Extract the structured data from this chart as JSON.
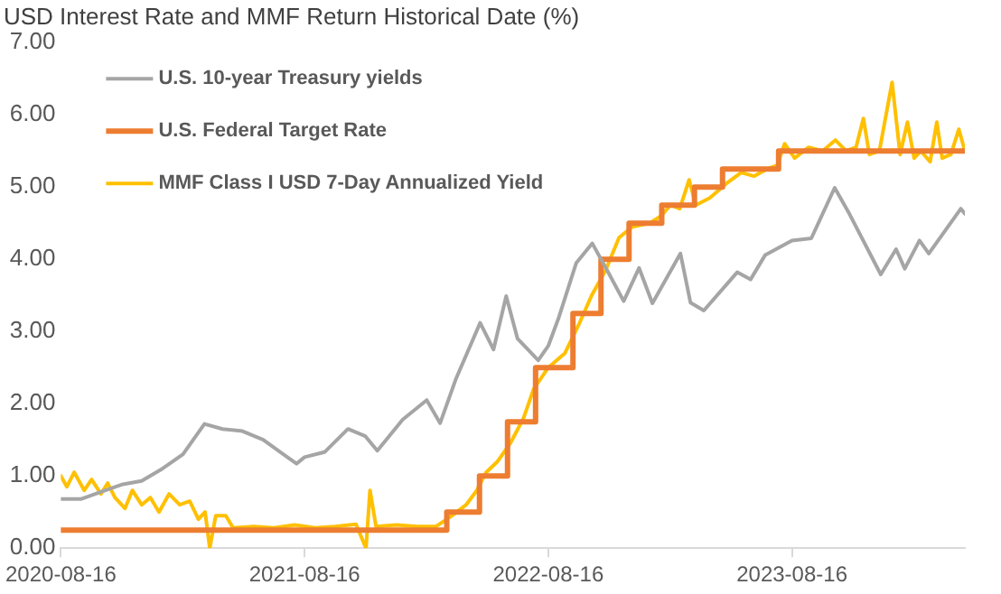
{
  "chart_data": {
    "type": "line",
    "title": "USD Interest Rate and MMF Return Historical Date (%)",
    "xlim": [
      "2020-08-16",
      "2024-05-01"
    ],
    "xticks": [
      "2020-08-16",
      "2021-08-16",
      "2022-08-16",
      "2023-08-16"
    ],
    "ylim": [
      0,
      7
    ],
    "yticks": [
      {
        "value": 0,
        "label": "0.00"
      },
      {
        "value": 1,
        "label": "1.00"
      },
      {
        "value": 2,
        "label": "2.00"
      },
      {
        "value": 3,
        "label": "3.00"
      },
      {
        "value": 4,
        "label": "4.00"
      },
      {
        "value": 5,
        "label": "5.00"
      },
      {
        "value": 6,
        "label": "6.00"
      },
      {
        "value": 7,
        "label": "7.00"
      }
    ],
    "grid": false,
    "legend": "top left",
    "marker": "none",
    "line_style": "solid",
    "series": [
      {
        "name": "U.S. 10-year Treasury yields",
        "color": "#a5a5a5",
        "x": [
          "2020-08-16",
          "2020-09-15",
          "2020-10-15",
          "2020-11-15",
          "2020-12-15",
          "2021-01-15",
          "2021-02-15",
          "2021-03-19",
          "2021-04-15",
          "2021-05-15",
          "2021-06-15",
          "2021-07-15",
          "2021-08-04",
          "2021-08-16",
          "2021-09-15",
          "2021-10-20",
          "2021-11-15",
          "2021-12-03",
          "2022-01-10",
          "2022-02-15",
          "2022-03-07",
          "2022-03-31",
          "2022-05-06",
          "2022-05-26",
          "2022-06-14",
          "2022-07-01",
          "2022-08-01",
          "2022-08-16",
          "2022-09-01",
          "2022-09-27",
          "2022-10-21",
          "2022-11-15",
          "2022-12-07",
          "2022-12-30",
          "2023-01-19",
          "2023-03-02",
          "2023-03-17",
          "2023-04-06",
          "2023-05-26",
          "2023-06-15",
          "2023-07-07",
          "2023-08-16",
          "2023-09-14",
          "2023-10-19",
          "2023-11-10",
          "2023-12-27",
          "2024-01-19",
          "2024-02-01",
          "2024-02-23",
          "2024-03-08",
          "2024-04-25",
          "2024-05-01"
        ],
        "values": [
          0.68,
          0.68,
          0.78,
          0.88,
          0.93,
          1.1,
          1.3,
          1.72,
          1.65,
          1.62,
          1.5,
          1.3,
          1.17,
          1.26,
          1.33,
          1.65,
          1.55,
          1.35,
          1.78,
          2.05,
          1.73,
          2.35,
          3.12,
          2.75,
          3.49,
          2.9,
          2.6,
          2.8,
          3.2,
          3.95,
          4.22,
          3.8,
          3.42,
          3.88,
          3.39,
          4.08,
          3.4,
          3.29,
          3.82,
          3.72,
          4.06,
          4.26,
          4.29,
          4.99,
          4.63,
          3.79,
          4.14,
          3.87,
          4.26,
          4.08,
          4.7,
          4.63
        ]
      },
      {
        "name": "U.S. Federal Target Rate",
        "color": "#ed7d31",
        "type": "step",
        "x": [
          "2020-08-16",
          "2022-03-17",
          "2022-05-05",
          "2022-06-16",
          "2022-07-28",
          "2022-09-22",
          "2022-11-03",
          "2022-12-15",
          "2023-02-02",
          "2023-03-23",
          "2023-05-04",
          "2023-07-27",
          "2024-05-01"
        ],
        "values": [
          0.25,
          0.5,
          1.0,
          1.75,
          2.5,
          3.25,
          4.0,
          4.5,
          4.75,
          5.0,
          5.25,
          5.5,
          5.5
        ]
      },
      {
        "name": "MMF Class I USD 7-Day Annualized Yield",
        "color": "#ffc000",
        "x": [
          "2020-08-16",
          "2020-08-25",
          "2020-09-05",
          "2020-09-20",
          "2020-10-01",
          "2020-10-15",
          "2020-10-25",
          "2020-11-05",
          "2020-11-20",
          "2020-12-01",
          "2020-12-15",
          "2020-12-28",
          "2021-01-10",
          "2021-01-25",
          "2021-02-10",
          "2021-02-25",
          "2021-03-10",
          "2021-03-20",
          "2021-03-27",
          "2021-04-05",
          "2021-04-20",
          "2021-05-01",
          "2021-06-01",
          "2021-07-01",
          "2021-08-01",
          "2021-09-01",
          "2021-10-01",
          "2021-11-01",
          "2021-11-16",
          "2021-11-22",
          "2021-12-01",
          "2022-01-01",
          "2022-02-01",
          "2022-03-01",
          "2022-03-25",
          "2022-04-15",
          "2022-05-01",
          "2022-05-15",
          "2022-06-01",
          "2022-06-20",
          "2022-07-10",
          "2022-07-25",
          "2022-08-16",
          "2022-09-10",
          "2022-10-01",
          "2022-10-20",
          "2022-11-10",
          "2022-11-30",
          "2022-12-20",
          "2023-01-15",
          "2023-02-01",
          "2023-02-15",
          "2023-03-01",
          "2023-03-15",
          "2023-03-25",
          "2023-04-15",
          "2023-05-10",
          "2023-06-01",
          "2023-06-20",
          "2023-07-10",
          "2023-07-25",
          "2023-08-05",
          "2023-08-20",
          "2023-09-10",
          "2023-10-01",
          "2023-10-20",
          "2023-11-05",
          "2023-11-20",
          "2023-12-01",
          "2023-12-10",
          "2023-12-25",
          "2024-01-13",
          "2024-01-25",
          "2024-02-05",
          "2024-02-15",
          "2024-02-25",
          "2024-03-10",
          "2024-03-20",
          "2024-03-28",
          "2024-04-10",
          "2024-04-22",
          "2024-05-01"
        ],
        "values": [
          1.0,
          0.85,
          1.05,
          0.8,
          0.95,
          0.75,
          0.9,
          0.7,
          0.55,
          0.8,
          0.6,
          0.7,
          0.5,
          0.75,
          0.6,
          0.65,
          0.4,
          0.5,
          0.0,
          0.45,
          0.45,
          0.28,
          0.3,
          0.28,
          0.32,
          0.28,
          0.3,
          0.33,
          0.0,
          0.8,
          0.3,
          0.32,
          0.3,
          0.3,
          0.45,
          0.6,
          0.8,
          1.05,
          1.2,
          1.45,
          1.8,
          2.2,
          2.5,
          2.7,
          3.1,
          3.5,
          3.85,
          4.3,
          4.45,
          4.5,
          4.6,
          4.75,
          4.7,
          5.1,
          4.75,
          4.85,
          5.05,
          5.2,
          5.15,
          5.25,
          5.3,
          5.6,
          5.4,
          5.55,
          5.5,
          5.65,
          5.5,
          5.55,
          5.95,
          5.45,
          5.5,
          6.45,
          5.45,
          5.9,
          5.4,
          5.5,
          5.35,
          5.9,
          5.4,
          5.45,
          5.8,
          5.5
        ]
      }
    ]
  }
}
